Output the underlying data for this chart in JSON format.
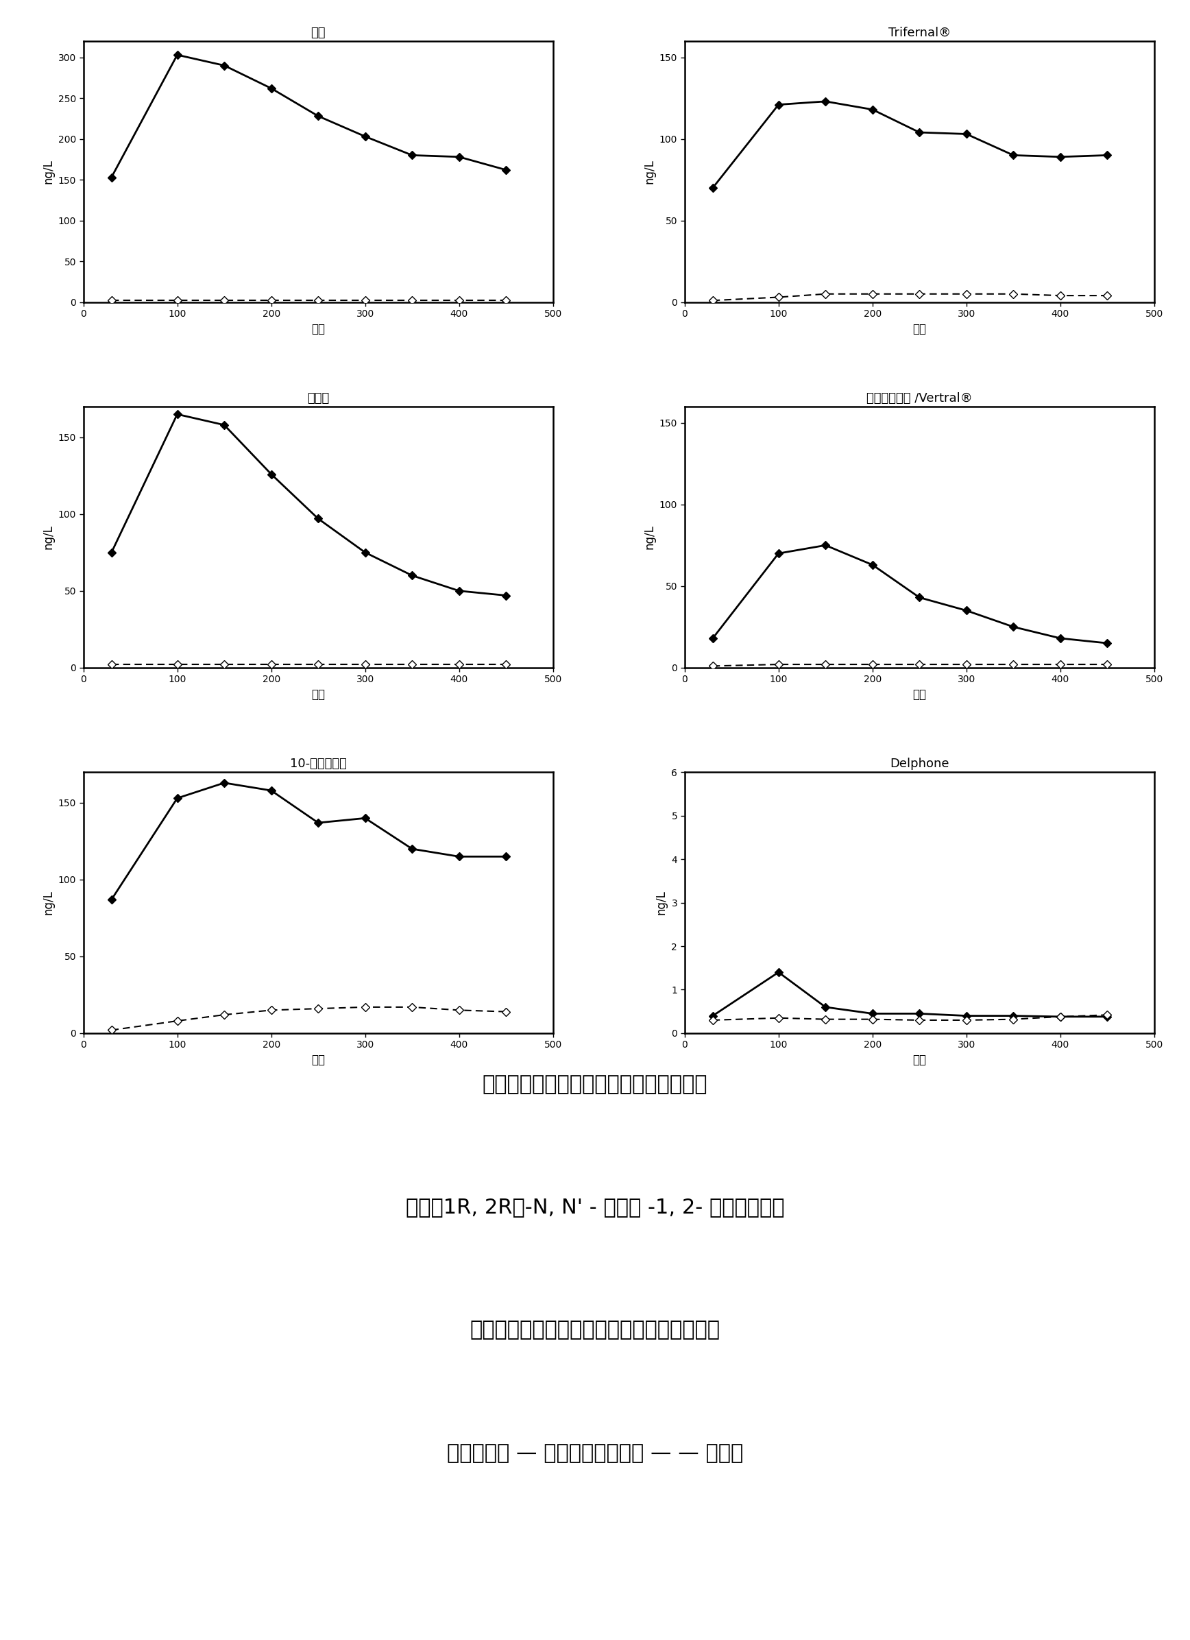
{
  "subplots": [
    {
      "title": "糠醛",
      "xlabel": "分钟",
      "ylabel": "ng/L",
      "xlim": [
        0,
        500
      ],
      "ylim": [
        0,
        320
      ],
      "yticks": [
        0,
        50,
        100,
        150,
        200,
        250,
        300
      ],
      "xticks": [
        0,
        100,
        200,
        300,
        400,
        500
      ],
      "solid_x": [
        30,
        100,
        150,
        200,
        250,
        300,
        350,
        400,
        450
      ],
      "solid_y": [
        153,
        303,
        290,
        262,
        228,
        203,
        180,
        178,
        162
      ],
      "dashed_x": [
        30,
        100,
        150,
        200,
        250,
        300,
        350,
        400,
        450
      ],
      "dashed_y": [
        2,
        2,
        2,
        2,
        2,
        2,
        2,
        2,
        2
      ]
    },
    {
      "title": "Trifernal®",
      "xlabel": "分钟",
      "ylabel": "ng/L",
      "xlim": [
        0,
        500
      ],
      "ylim": [
        0,
        160
      ],
      "yticks": [
        0,
        50,
        100,
        150
      ],
      "xticks": [
        0,
        100,
        200,
        300,
        400,
        500
      ],
      "solid_x": [
        30,
        100,
        150,
        200,
        250,
        300,
        350,
        400,
        450
      ],
      "solid_y": [
        70,
        121,
        123,
        118,
        104,
        103,
        90,
        89,
        90
      ],
      "dashed_x": [
        30,
        100,
        150,
        200,
        250,
        300,
        350,
        400,
        450
      ],
      "dashed_y": [
        1,
        3,
        5,
        5,
        5,
        5,
        5,
        4,
        4
      ]
    },
    {
      "title": "香茅醛",
      "xlabel": "分钟",
      "ylabel": "ng/L",
      "xlim": [
        0,
        500
      ],
      "ylim": [
        0,
        170
      ],
      "yticks": [
        0,
        50,
        100,
        150
      ],
      "xticks": [
        0,
        100,
        200,
        300,
        400,
        500
      ],
      "solid_x": [
        30,
        100,
        150,
        200,
        250,
        300,
        350,
        400,
        450
      ],
      "solid_y": [
        75,
        165,
        158,
        126,
        97,
        75,
        60,
        50,
        47
      ],
      "dashed_x": [
        30,
        100,
        150,
        200,
        250,
        300,
        350,
        400,
        450
      ],
      "dashed_y": [
        2,
        2,
        2,
        2,
        2,
        2,
        2,
        2,
        2
      ]
    },
    {
      "title": "甲酰三环癸烷 /Vertral®",
      "xlabel": "分钟",
      "ylabel": "ng/L",
      "xlim": [
        0,
        500
      ],
      "ylim": [
        0,
        160
      ],
      "yticks": [
        0,
        50,
        100,
        150
      ],
      "xticks": [
        0,
        100,
        200,
        300,
        400,
        500
      ],
      "solid_x": [
        30,
        100,
        150,
        200,
        250,
        300,
        350,
        400,
        450
      ],
      "solid_y": [
        18,
        70,
        75,
        63,
        43,
        35,
        25,
        18,
        15
      ],
      "dashed_x": [
        30,
        100,
        150,
        200,
        250,
        300,
        350,
        400,
        450
      ],
      "dashed_y": [
        1,
        2,
        2,
        2,
        2,
        2,
        2,
        2,
        2
      ]
    },
    {
      "title": "10-十一碳烯醛",
      "xlabel": "分钟",
      "ylabel": "ng/L",
      "xlim": [
        0,
        500
      ],
      "ylim": [
        0,
        170
      ],
      "yticks": [
        0,
        50,
        100,
        150
      ],
      "xticks": [
        0,
        100,
        200,
        300,
        400,
        500
      ],
      "solid_x": [
        30,
        100,
        150,
        200,
        250,
        300,
        350,
        400,
        450
      ],
      "solid_y": [
        87,
        153,
        163,
        158,
        137,
        140,
        120,
        115,
        115
      ],
      "dashed_x": [
        30,
        100,
        150,
        200,
        250,
        300,
        350,
        400,
        450
      ],
      "dashed_y": [
        2,
        8,
        12,
        15,
        16,
        17,
        17,
        15,
        14
      ]
    },
    {
      "title": "Delphone",
      "xlabel": "分钟",
      "ylabel": "ng/L",
      "xlim": [
        0,
        500
      ],
      "ylim": [
        0,
        6
      ],
      "yticks": [
        0,
        1,
        2,
        3,
        4,
        5,
        6
      ],
      "xticks": [
        0,
        100,
        200,
        300,
        400,
        500
      ],
      "solid_x": [
        30,
        100,
        150,
        200,
        250,
        300,
        350,
        400,
        450
      ],
      "solid_y": [
        0.4,
        1.4,
        0.6,
        0.45,
        0.45,
        0.4,
        0.4,
        0.38,
        0.38
      ],
      "dashed_x": [
        30,
        100,
        150,
        200,
        250,
        300,
        350,
        400,
        450
      ],
      "dashed_y": [
        0.3,
        0.35,
        0.32,
        0.32,
        0.3,
        0.3,
        0.32,
        0.38,
        0.42
      ]
    }
  ],
  "caption_lines": [
    "如通过动态顶空分析所获得的，在干织物",
    "上在（1R, 2R）-N, N' - 二苄基 -1, 2- 环己二胺存在",
    "和不存在下，香料醛和酮的顶空中浓度的比较",
    "（存在二胺 — 实线；不存在二胺 — — 虚线）"
  ],
  "background_color": "#ffffff",
  "panel_color": "#ffffff"
}
